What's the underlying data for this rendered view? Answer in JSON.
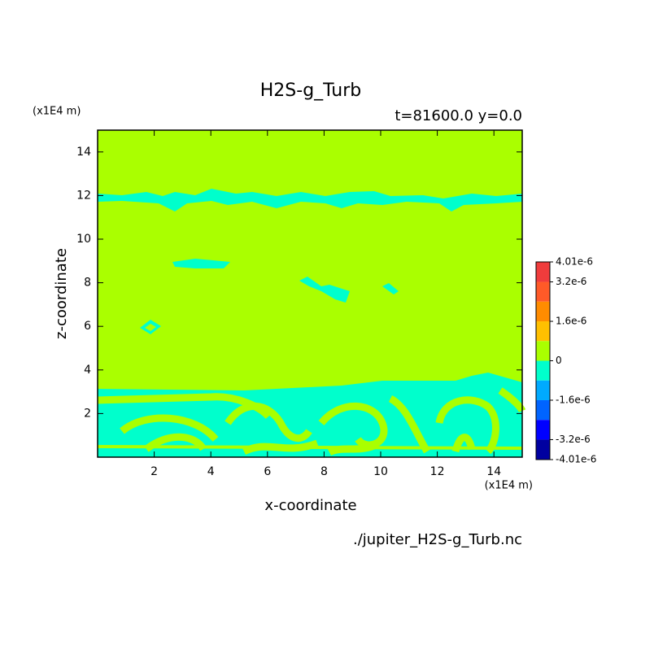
{
  "chart_data": {
    "type": "contour",
    "title": "H2S-g_Turb",
    "subtitle": "t=81600.0 y=0.0",
    "xlabel": "x-coordinate",
    "ylabel": "z-coordinate",
    "x_unit": "(x1E4 m)",
    "y_unit": "(x1E4 m)",
    "source": "./jupiter_H2S-g_Turb.nc",
    "xlim": [
      0,
      15
    ],
    "ylim": [
      0,
      15
    ],
    "xticks": [
      2,
      4,
      6,
      8,
      10,
      12,
      14
    ],
    "yticks": [
      2,
      4,
      6,
      8,
      10,
      12,
      14
    ],
    "levels": [
      4.01e-06,
      3.2e-06,
      2.4e-06,
      1.6e-06,
      8e-07,
      0,
      -8e-07,
      -1.6e-06,
      -2.4e-06,
      -3.2e-06,
      -4.01e-06
    ],
    "colors": [
      "#f03c3c",
      "#ff5a28",
      "#ff8c00",
      "#ffc000",
      "#aaff00",
      "#00ffcc",
      "#00aaff",
      "#0064ff",
      "#0000ff",
      "#0000a0"
    ],
    "colorbar_ticks": [
      {
        "value": 4.01e-06,
        "label": "4.01e-6"
      },
      {
        "value": 3.2e-06,
        "label": "3.2e-6"
      },
      {
        "value": 1.6e-06,
        "label": "1.6e-6"
      },
      0,
      {
        "value": -1.6e-06,
        "label": "-1.6e-6"
      },
      {
        "value": -3.2e-06,
        "label": "-3.2e-6"
      },
      {
        "value": -4.01e-06,
        "label": "-4.01e-6"
      }
    ]
  }
}
